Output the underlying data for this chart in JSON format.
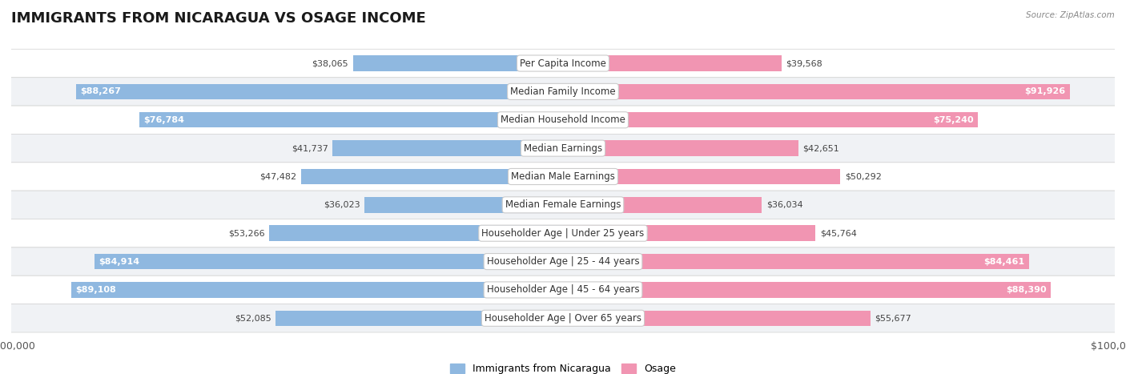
{
  "title": "IMMIGRANTS FROM NICARAGUA VS OSAGE INCOME",
  "source": "Source: ZipAtlas.com",
  "categories": [
    "Per Capita Income",
    "Median Family Income",
    "Median Household Income",
    "Median Earnings",
    "Median Male Earnings",
    "Median Female Earnings",
    "Householder Age | Under 25 years",
    "Householder Age | 25 - 44 years",
    "Householder Age | 45 - 64 years",
    "Householder Age | Over 65 years"
  ],
  "nicaragua_values": [
    38065,
    88267,
    76784,
    41737,
    47482,
    36023,
    53266,
    84914,
    89108,
    52085
  ],
  "osage_values": [
    39568,
    91926,
    75240,
    42651,
    50292,
    36034,
    45764,
    84461,
    88390,
    55677
  ],
  "nicaragua_color": "#8fb8e0",
  "osage_color": "#f195b2",
  "nicaragua_label": "Immigrants from Nicaragua",
  "osage_label": "Osage",
  "x_max": 100000,
  "background_color": "#ffffff",
  "row_bg_light": "#f0f2f5",
  "row_bg_white": "#ffffff",
  "title_fontsize": 13,
  "label_fontsize": 8.5,
  "value_fontsize": 8,
  "axis_label_fontsize": 9
}
